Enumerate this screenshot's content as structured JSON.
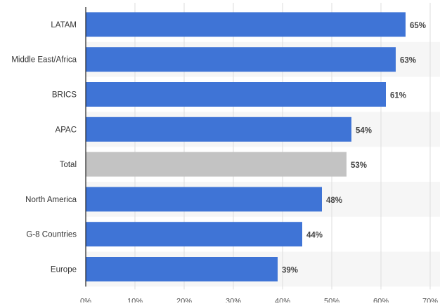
{
  "chart_data": {
    "type": "bar",
    "orientation": "horizontal",
    "categories": [
      "LATAM",
      "Middle East/Africa",
      "BRICS",
      "APAC",
      "Total",
      "North America",
      "G-8 Countries",
      "Europe"
    ],
    "values": [
      65,
      63,
      61,
      54,
      53,
      48,
      44,
      39
    ],
    "data_labels": [
      "65%",
      "63%",
      "61%",
      "54%",
      "53%",
      "48%",
      "44%",
      "39%"
    ],
    "highlight_category": "Total",
    "xlim": [
      0,
      70
    ],
    "x_ticks": [
      0,
      10,
      20,
      30,
      40,
      50,
      60,
      70
    ],
    "x_tick_labels": [
      "0%",
      "10%",
      "20%",
      "30%",
      "40%",
      "50%",
      "60%",
      "70%"
    ],
    "title": "",
    "xlabel": "",
    "ylabel": "",
    "grid": "vertical",
    "legend": "none",
    "colors": {
      "bar": "#3f74d6",
      "highlight_bar": "#c3c3c3",
      "grid": "#dddddd",
      "band": "#f6f6f6",
      "axis": "#222222",
      "label_text": "#333333",
      "value_text": "#444444",
      "tick_text": "#555555"
    }
  }
}
